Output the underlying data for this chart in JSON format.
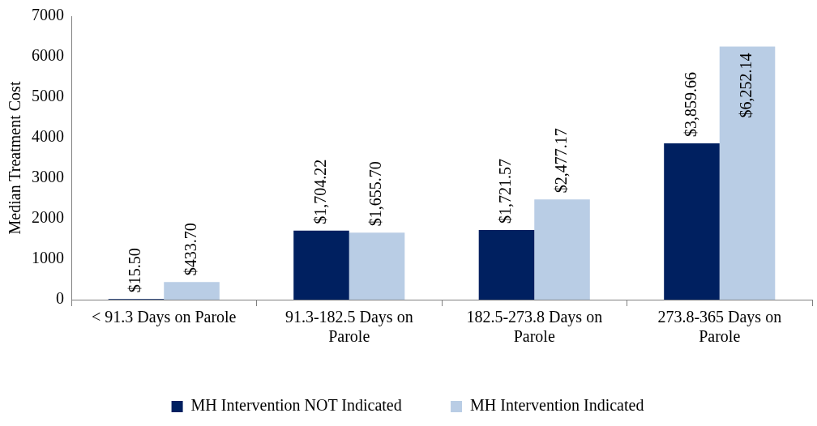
{
  "chart_data": {
    "type": "bar",
    "ylabel": "Median Treatment Cost",
    "categories": [
      "< 91.3 Days on Parole",
      "91.3-182.5 Days on Parole",
      "182.5-273.8 Days on Parole",
      "273.8-365 Days on Parole"
    ],
    "series": [
      {
        "name": "MH Intervention NOT Indicated",
        "color": "#002060",
        "values": [
          15.5,
          1704.22,
          1721.57,
          3859.66
        ],
        "value_labels": [
          "$15.50",
          "$1,704.22",
          "$1,721.57",
          "$3,859.66"
        ]
      },
      {
        "name": "MH Intervention Indicated",
        "color": "#b9cde5",
        "values": [
          433.7,
          1655.7,
          2477.17,
          6252.14
        ],
        "value_labels": [
          "$433.70",
          "$1,655.70",
          "$2,477.17",
          "$6,252.14"
        ]
      }
    ],
    "ylim": [
      0,
      7000
    ],
    "yticks": [
      0,
      1000,
      2000,
      3000,
      4000,
      5000,
      6000,
      7000
    ],
    "grid": false,
    "legend": "bottom"
  }
}
